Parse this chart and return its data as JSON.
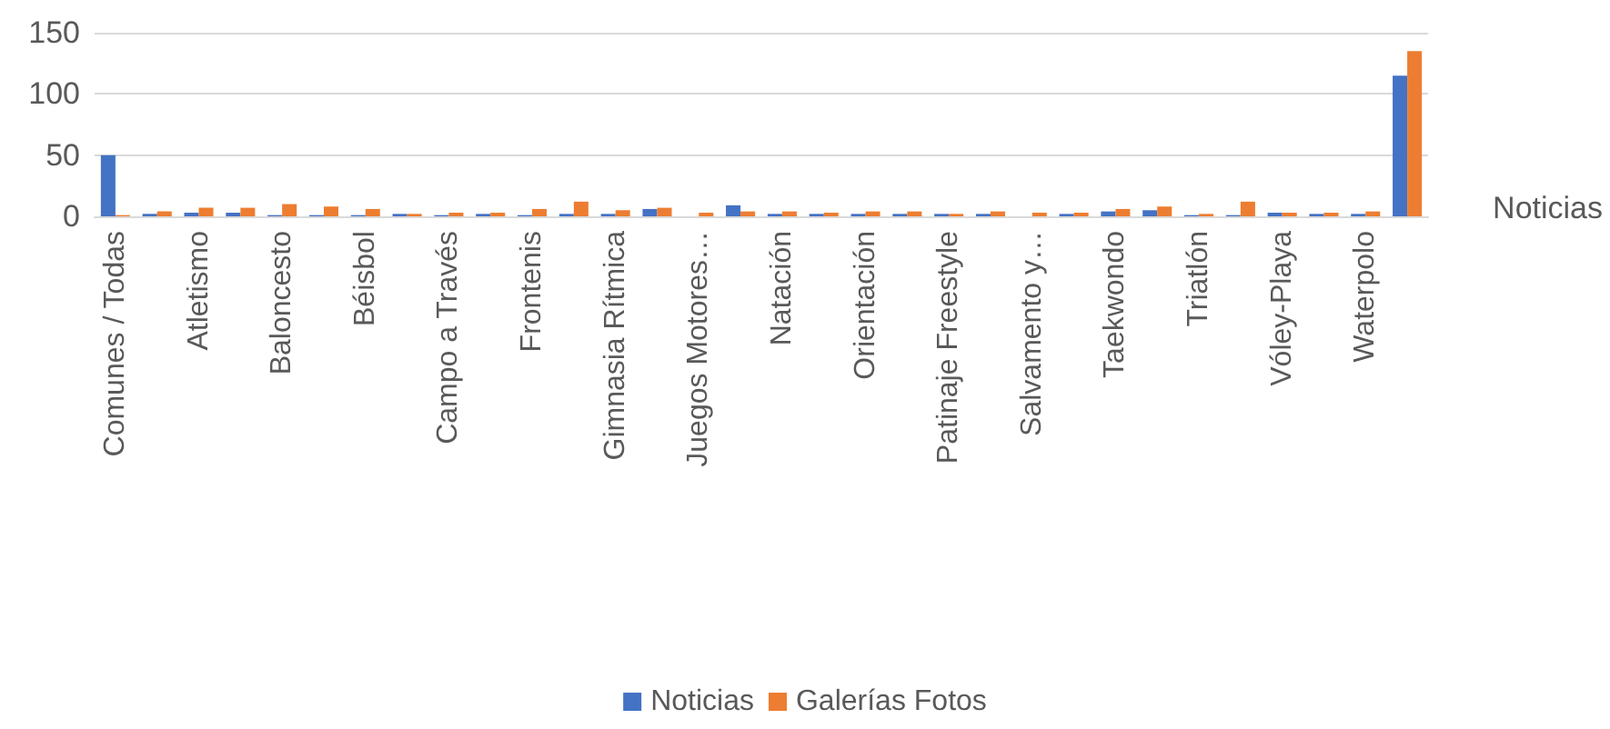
{
  "chart_data": {
    "type": "bar",
    "categories": [
      "Comunes / Todas",
      null,
      "Atletismo",
      null,
      "Baloncesto",
      null,
      "Béisbol",
      null,
      "Campo a Través",
      null,
      "Frontenis",
      null,
      "Gimnasia Rítmica",
      null,
      "Juegos Motores…",
      null,
      "Natación",
      null,
      "Orientación",
      null,
      "Patinaje Freestyle",
      null,
      "Salvamento y…",
      null,
      "Taekwondo",
      null,
      "Triatlón",
      null,
      "Vóley-Playa",
      null,
      "Waterpolo",
      null
    ],
    "series": [
      {
        "name": "Noticias",
        "color": "#4472c4",
        "values": [
          50,
          2,
          3,
          3,
          1,
          1,
          1,
          2,
          1,
          2,
          1,
          2,
          2,
          6,
          0,
          9,
          2,
          2,
          2,
          2,
          2,
          2,
          0,
          2,
          4,
          5,
          1,
          1,
          3,
          2,
          2,
          115
        ]
      },
      {
        "name": "Galerías Fotos",
        "color": "#ed7d31",
        "values": [
          1,
          4,
          7,
          7,
          10,
          8,
          6,
          2,
          3,
          3,
          6,
          12,
          5,
          7,
          3,
          4,
          4,
          3,
          4,
          4,
          2,
          4,
          3,
          3,
          6,
          8,
          2,
          12,
          3,
          3,
          4,
          135
        ]
      }
    ],
    "ylim": [
      0,
      150
    ],
    "yticks": [
      0,
      50,
      100,
      150
    ],
    "grid": "y",
    "legend": "bottom",
    "annotations": [
      "Noticias"
    ]
  }
}
